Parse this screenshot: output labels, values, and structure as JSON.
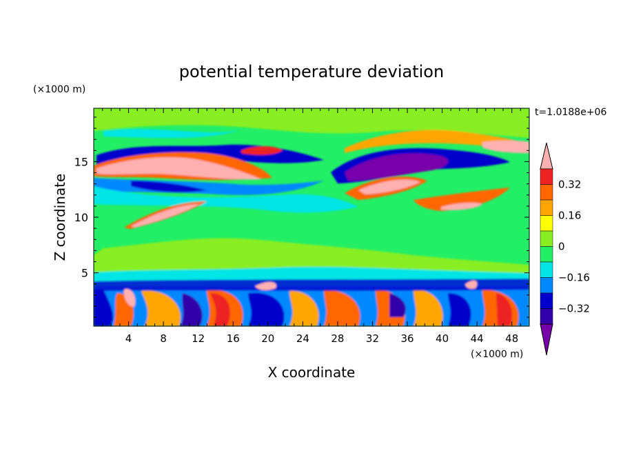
{
  "chart_data": {
    "type": "heatmap",
    "title": "potential temperature deviation",
    "xlabel": "X coordinate",
    "ylabel": "Z coordinate",
    "x_unit_label": "(×1000 m)",
    "y_unit_label": "(×1000 m)",
    "time_label": "t=1.0188e+06",
    "xlim": [
      0,
      50
    ],
    "ylim": [
      0.2,
      19.8
    ],
    "x_ticks": [
      4,
      8,
      12,
      16,
      20,
      24,
      28,
      32,
      36,
      40,
      44,
      48
    ],
    "y_ticks": [
      5,
      10,
      15
    ],
    "colorbar": {
      "levels": [
        -0.4,
        -0.32,
        -0.24,
        -0.16,
        -0.08,
        0,
        0.08,
        0.16,
        0.24,
        0.32,
        0.4
      ],
      "labeled_ticks": [
        0.32,
        0.16,
        0,
        -0.16,
        -0.32
      ],
      "colors": [
        "#FFB0B0",
        "#EE2222",
        "#FF6600",
        "#FFA500",
        "#FFFF00",
        "#88EE22",
        "#22EE66",
        "#00E5E5",
        "#0088FF",
        "#0000CC",
        "#3300AA",
        "#7700AA"
      ]
    }
  }
}
